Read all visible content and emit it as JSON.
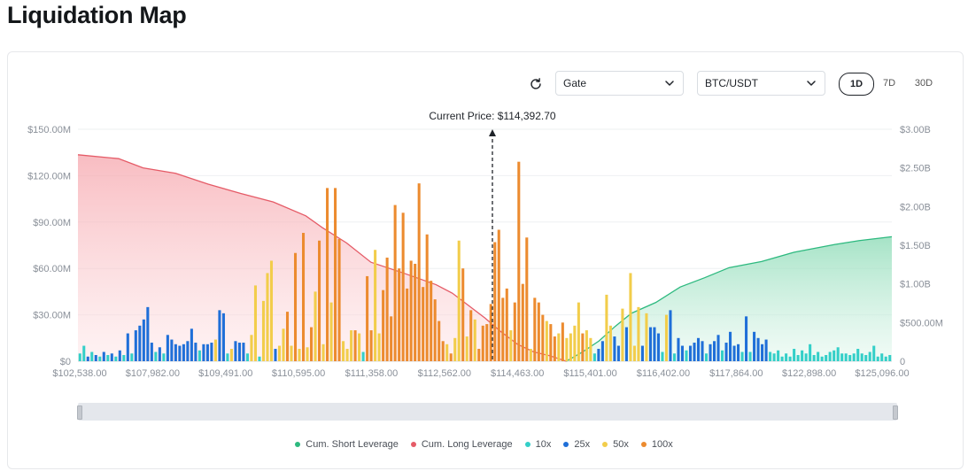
{
  "page": {
    "title": "Liquidation Map"
  },
  "controls": {
    "exchange": "Gate",
    "pair": "BTC/USDT",
    "ranges": [
      {
        "label": "1D",
        "active": true
      },
      {
        "label": "7D",
        "active": false
      },
      {
        "label": "30D",
        "active": false
      }
    ]
  },
  "colors": {
    "short": "#2db97f",
    "long": "#e55b67",
    "x10": "#33cfc8",
    "x25": "#1f6fd8",
    "x50": "#f2cd4b",
    "x100": "#ec8b2f"
  },
  "chart_data": {
    "type": "bar",
    "current_price_label": "Current Price: $114,392.70",
    "current_price": 114392.7,
    "left_axis": {
      "ticks": [
        "$0",
        "$30.00M",
        "$60.00M",
        "$90.00M",
        "$120.00M",
        "$150.00M"
      ],
      "ylim": [
        0,
        150
      ]
    },
    "right_axis": {
      "ticks": [
        "0",
        "$500.00M",
        "$1.00B",
        "$1.50B",
        "$2.00B",
        "$2.50B",
        "$3.00B"
      ],
      "ylim": [
        0,
        3000
      ]
    },
    "x_ticks": [
      "$102,538.00",
      "$107,982.00",
      "$109,491.00",
      "$110,595.00",
      "$111,358.00",
      "$112,562.00",
      "$114,463.00",
      "$115,401.00",
      "$116,402.00",
      "$117,864.00",
      "$122,898.00",
      "$125,096.00"
    ],
    "legend": [
      "Cum. Short Leverage",
      "Cum. Long Leverage",
      "10x",
      "25x",
      "50x",
      "100x"
    ],
    "bars": [
      {
        "l": "10x",
        "v": 5
      },
      {
        "l": "10x",
        "v": 10
      },
      {
        "l": "25x",
        "v": 3
      },
      {
        "l": "10x",
        "v": 6
      },
      {
        "l": "25x",
        "v": 4
      },
      {
        "l": "10x",
        "v": 3
      },
      {
        "l": "25x",
        "v": 6
      },
      {
        "l": "10x",
        "v": 4
      },
      {
        "l": "25x",
        "v": 5
      },
      {
        "l": "10x",
        "v": 3
      },
      {
        "l": "25x",
        "v": 7
      },
      {
        "l": "10x",
        "v": 4
      },
      {
        "l": "25x",
        "v": 18
      },
      {
        "l": "10x",
        "v": 5
      },
      {
        "l": "25x",
        "v": 20
      },
      {
        "l": "25x",
        "v": 23
      },
      {
        "l": "25x",
        "v": 27
      },
      {
        "l": "25x",
        "v": 35
      },
      {
        "l": "25x",
        "v": 12
      },
      {
        "l": "10x",
        "v": 6
      },
      {
        "l": "25x",
        "v": 9
      },
      {
        "l": "10x",
        "v": 5
      },
      {
        "l": "25x",
        "v": 17
      },
      {
        "l": "25x",
        "v": 14
      },
      {
        "l": "25x",
        "v": 11
      },
      {
        "l": "25x",
        "v": 10
      },
      {
        "l": "25x",
        "v": 11
      },
      {
        "l": "25x",
        "v": 13
      },
      {
        "l": "25x",
        "v": 21
      },
      {
        "l": "25x",
        "v": 12
      },
      {
        "l": "10x",
        "v": 7
      },
      {
        "l": "25x",
        "v": 11
      },
      {
        "l": "25x",
        "v": 11
      },
      {
        "l": "25x",
        "v": 12
      },
      {
        "l": "50x",
        "v": 14
      },
      {
        "l": "25x",
        "v": 33
      },
      {
        "l": "25x",
        "v": 31
      },
      {
        "l": "10x",
        "v": 5
      },
      {
        "l": "50x",
        "v": 8
      },
      {
        "l": "25x",
        "v": 13
      },
      {
        "l": "25x",
        "v": 12
      },
      {
        "l": "25x",
        "v": 12
      },
      {
        "l": "10x",
        "v": 5
      },
      {
        "l": "50x",
        "v": 17
      },
      {
        "l": "50x",
        "v": 49
      },
      {
        "l": "10x",
        "v": 3
      },
      {
        "l": "50x",
        "v": 39
      },
      {
        "l": "50x",
        "v": 57
      },
      {
        "l": "50x",
        "v": 65
      },
      {
        "l": "25x",
        "v": 8
      },
      {
        "l": "50x",
        "v": 10
      },
      {
        "l": "50x",
        "v": 21
      },
      {
        "l": "100x",
        "v": 32
      },
      {
        "l": "50x",
        "v": 10
      },
      {
        "l": "100x",
        "v": 70
      },
      {
        "l": "50x",
        "v": 8
      },
      {
        "l": "100x",
        "v": 83
      },
      {
        "l": "50x",
        "v": 9
      },
      {
        "l": "100x",
        "v": 22
      },
      {
        "l": "50x",
        "v": 45
      },
      {
        "l": "100x",
        "v": 78
      },
      {
        "l": "50x",
        "v": 11
      },
      {
        "l": "100x",
        "v": 112
      },
      {
        "l": "50x",
        "v": 38
      },
      {
        "l": "100x",
        "v": 112
      },
      {
        "l": "100x",
        "v": 79
      },
      {
        "l": "50x",
        "v": 13
      },
      {
        "l": "50x",
        "v": 8
      },
      {
        "l": "50x",
        "v": 20
      },
      {
        "l": "100x",
        "v": 20
      },
      {
        "l": "50x",
        "v": 18
      },
      {
        "l": "10x",
        "v": 6
      },
      {
        "l": "100x",
        "v": 55
      },
      {
        "l": "100x",
        "v": 20
      },
      {
        "l": "50x",
        "v": 72
      },
      {
        "l": "50x",
        "v": 18
      },
      {
        "l": "100x",
        "v": 46
      },
      {
        "l": "100x",
        "v": 67
      },
      {
        "l": "100x",
        "v": 29
      },
      {
        "l": "100x",
        "v": 101
      },
      {
        "l": "100x",
        "v": 60
      },
      {
        "l": "100x",
        "v": 96
      },
      {
        "l": "100x",
        "v": 47
      },
      {
        "l": "100x",
        "v": 65
      },
      {
        "l": "100x",
        "v": 63
      },
      {
        "l": "100x",
        "v": 115
      },
      {
        "l": "100x",
        "v": 48
      },
      {
        "l": "100x",
        "v": 82
      },
      {
        "l": "100x",
        "v": 52
      },
      {
        "l": "100x",
        "v": 40
      },
      {
        "l": "100x",
        "v": 26
      },
      {
        "l": "100x",
        "v": 13
      },
      {
        "l": "50x",
        "v": 11
      },
      {
        "l": "100x",
        "v": 5
      },
      {
        "l": "50x",
        "v": 15
      },
      {
        "l": "50x",
        "v": 78
      },
      {
        "l": "100x",
        "v": 60
      },
      {
        "l": "50x",
        "v": 16
      },
      {
        "l": "100x",
        "v": 33
      },
      {
        "l": "50x",
        "v": 27
      },
      {
        "l": "100x",
        "v": 8
      },
      {
        "l": "100x",
        "v": 23
      },
      {
        "l": "100x",
        "v": 24
      },
      {
        "l": "100x",
        "v": 37
      },
      {
        "l": "100x",
        "v": 77
      },
      {
        "l": "100x",
        "v": 85
      },
      {
        "l": "100x",
        "v": 41
      },
      {
        "l": "100x",
        "v": 47
      },
      {
        "l": "50x",
        "v": 20
      },
      {
        "l": "100x",
        "v": 38
      },
      {
        "l": "100x",
        "v": 129
      },
      {
        "l": "100x",
        "v": 50
      },
      {
        "l": "100x",
        "v": 80
      },
      {
        "l": "50x",
        "v": 8
      },
      {
        "l": "100x",
        "v": 41
      },
      {
        "l": "100x",
        "v": 38
      },
      {
        "l": "100x",
        "v": 30
      },
      {
        "l": "50x",
        "v": 26
      },
      {
        "l": "100x",
        "v": 24
      },
      {
        "l": "100x",
        "v": 16
      },
      {
        "l": "50x",
        "v": 18
      },
      {
        "l": "100x",
        "v": 25
      },
      {
        "l": "50x",
        "v": 15
      },
      {
        "l": "50x",
        "v": 18
      },
      {
        "l": "50x",
        "v": 23
      },
      {
        "l": "50x",
        "v": 38
      },
      {
        "l": "100x",
        "v": 18
      },
      {
        "l": "50x",
        "v": 20
      },
      {
        "l": "50x",
        "v": 15
      },
      {
        "l": "10x",
        "v": 5
      },
      {
        "l": "25x",
        "v": 8
      },
      {
        "l": "25x",
        "v": 13
      },
      {
        "l": "50x",
        "v": 43
      },
      {
        "l": "50x",
        "v": 23
      },
      {
        "l": "25x",
        "v": 16
      },
      {
        "l": "25x",
        "v": 10
      },
      {
        "l": "50x",
        "v": 34
      },
      {
        "l": "25x",
        "v": 22
      },
      {
        "l": "50x",
        "v": 57
      },
      {
        "l": "50x",
        "v": 10
      },
      {
        "l": "50x",
        "v": 35
      },
      {
        "l": "25x",
        "v": 10
      },
      {
        "l": "50x",
        "v": 31
      },
      {
        "l": "25x",
        "v": 22
      },
      {
        "l": "25x",
        "v": 22
      },
      {
        "l": "25x",
        "v": 18
      },
      {
        "l": "10x",
        "v": 6
      },
      {
        "l": "50x",
        "v": 30
      },
      {
        "l": "25x",
        "v": 33
      },
      {
        "l": "10x",
        "v": 5
      },
      {
        "l": "25x",
        "v": 15
      },
      {
        "l": "25x",
        "v": 10
      },
      {
        "l": "10x",
        "v": 7
      },
      {
        "l": "25x",
        "v": 10
      },
      {
        "l": "25x",
        "v": 12
      },
      {
        "l": "25x",
        "v": 15
      },
      {
        "l": "25x",
        "v": 13
      },
      {
        "l": "10x",
        "v": 5
      },
      {
        "l": "25x",
        "v": 11
      },
      {
        "l": "25x",
        "v": 13
      },
      {
        "l": "25x",
        "v": 17
      },
      {
        "l": "10x",
        "v": 7
      },
      {
        "l": "25x",
        "v": 12
      },
      {
        "l": "25x",
        "v": 19
      },
      {
        "l": "25x",
        "v": 10
      },
      {
        "l": "25x",
        "v": 11
      },
      {
        "l": "10x",
        "v": 6
      },
      {
        "l": "25x",
        "v": 29
      },
      {
        "l": "10x",
        "v": 6
      },
      {
        "l": "25x",
        "v": 19
      },
      {
        "l": "25x",
        "v": 15
      },
      {
        "l": "25x",
        "v": 11
      },
      {
        "l": "25x",
        "v": 14
      },
      {
        "l": "10x",
        "v": 6
      },
      {
        "l": "10x",
        "v": 5
      },
      {
        "l": "10x",
        "v": 7
      },
      {
        "l": "10x",
        "v": 3
      },
      {
        "l": "10x",
        "v": 5
      },
      {
        "l": "10x",
        "v": 3
      },
      {
        "l": "10x",
        "v": 8
      },
      {
        "l": "10x",
        "v": 4
      },
      {
        "l": "10x",
        "v": 7
      },
      {
        "l": "10x",
        "v": 5
      },
      {
        "l": "10x",
        "v": 11
      },
      {
        "l": "10x",
        "v": 4
      },
      {
        "l": "10x",
        "v": 6
      },
      {
        "l": "10x",
        "v": 3
      },
      {
        "l": "10x",
        "v": 4
      },
      {
        "l": "10x",
        "v": 6
      },
      {
        "l": "10x",
        "v": 7
      },
      {
        "l": "10x",
        "v": 9
      },
      {
        "l": "10x",
        "v": 5
      },
      {
        "l": "10x",
        "v": 5
      },
      {
        "l": "10x",
        "v": 4
      },
      {
        "l": "10x",
        "v": 5
      },
      {
        "l": "10x",
        "v": 8
      },
      {
        "l": "10x",
        "v": 5
      },
      {
        "l": "10x",
        "v": 4
      },
      {
        "l": "10x",
        "v": 6
      },
      {
        "l": "10x",
        "v": 10
      },
      {
        "l": "10x",
        "v": 3
      },
      {
        "l": "10x",
        "v": 5
      },
      {
        "l": "10x",
        "v": 3
      },
      {
        "l": "10x",
        "v": 4
      }
    ],
    "cum_long": [
      [
        0,
        2670
      ],
      [
        0.05,
        2620
      ],
      [
        0.08,
        2500
      ],
      [
        0.12,
        2430
      ],
      [
        0.16,
        2290
      ],
      [
        0.2,
        2170
      ],
      [
        0.24,
        2060
      ],
      [
        0.28,
        1880
      ],
      [
        0.3,
        1730
      ],
      [
        0.33,
        1530
      ],
      [
        0.36,
        1280
      ],
      [
        0.4,
        1140
      ],
      [
        0.44,
        990
      ],
      [
        0.46,
        880
      ],
      [
        0.48,
        720
      ],
      [
        0.5,
        560
      ],
      [
        0.52,
        380
      ],
      [
        0.54,
        220
      ],
      [
        0.56,
        120
      ],
      [
        0.58,
        70
      ],
      [
        0.6,
        0
      ]
    ],
    "cum_short": [
      [
        0.6,
        0
      ],
      [
        0.62,
        120
      ],
      [
        0.64,
        260
      ],
      [
        0.66,
        450
      ],
      [
        0.68,
        620
      ],
      [
        0.71,
        760
      ],
      [
        0.74,
        960
      ],
      [
        0.77,
        1080
      ],
      [
        0.8,
        1210
      ],
      [
        0.84,
        1290
      ],
      [
        0.88,
        1410
      ],
      [
        0.9,
        1450
      ],
      [
        0.93,
        1510
      ],
      [
        0.96,
        1560
      ],
      [
        1,
        1610
      ]
    ]
  }
}
